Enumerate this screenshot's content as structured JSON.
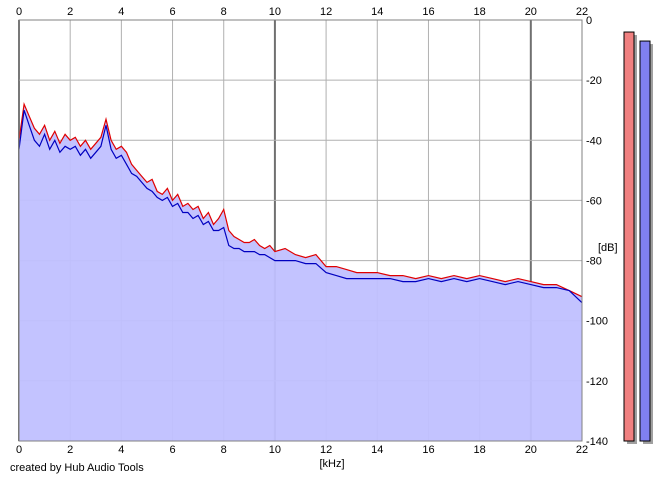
{
  "chart_data": {
    "type": "line",
    "xlabel": "[kHz]",
    "ylabel": "[dB]",
    "xlim": [
      0,
      22
    ],
    "ylim": [
      -140,
      0
    ],
    "x_ticks": [
      0,
      2,
      4,
      6,
      8,
      10,
      12,
      14,
      16,
      18,
      20,
      22
    ],
    "y_ticks": [
      0,
      -20,
      -40,
      -60,
      -80,
      -100,
      -120,
      -140
    ],
    "grid": true,
    "fill_color": "#c0c0ff",
    "series": [
      {
        "color": "#e00000",
        "x": [
          0,
          0.2,
          0.4,
          0.6,
          0.8,
          1.0,
          1.2,
          1.4,
          1.6,
          1.8,
          2.0,
          2.2,
          2.4,
          2.6,
          2.8,
          3.0,
          3.2,
          3.4,
          3.6,
          3.8,
          4.0,
          4.2,
          4.4,
          4.6,
          4.8,
          5.0,
          5.2,
          5.4,
          5.6,
          5.8,
          6.0,
          6.2,
          6.4,
          6.6,
          6.8,
          7.0,
          7.2,
          7.4,
          7.6,
          7.8,
          8.0,
          8.2,
          8.4,
          8.6,
          8.8,
          9.0,
          9.2,
          9.4,
          9.6,
          9.8,
          10.0,
          10.4,
          10.8,
          11.2,
          11.6,
          12.0,
          12.4,
          12.8,
          13.2,
          13.6,
          14.0,
          14.5,
          15.0,
          15.5,
          16.0,
          16.5,
          17.0,
          17.5,
          18.0,
          18.5,
          19.0,
          19.5,
          20.0,
          20.5,
          21.0,
          21.5,
          22.0
        ],
        "values": [
          -40,
          -28,
          -32,
          -36,
          -38,
          -35,
          -40,
          -37,
          -41,
          -38,
          -40,
          -39,
          -42,
          -40,
          -43,
          -41,
          -39,
          -33,
          -40,
          -43,
          -42,
          -44,
          -48,
          -50,
          -52,
          -54,
          -53,
          -57,
          -58,
          -56,
          -60,
          -58,
          -62,
          -61,
          -63,
          -62,
          -66,
          -64,
          -68,
          -66,
          -63,
          -70,
          -72,
          -73,
          -74,
          -74,
          -73,
          -75,
          -76,
          -75,
          -77,
          -76,
          -78,
          -79,
          -78,
          -82,
          -82,
          -83,
          -84,
          -84,
          -84,
          -85,
          -85,
          -86,
          -85,
          -86,
          -85,
          -86,
          -85,
          -86,
          -87,
          -86,
          -87,
          -88,
          -88,
          -90,
          -92
        ]
      },
      {
        "color": "#0000c0",
        "x": [
          0,
          0.2,
          0.4,
          0.6,
          0.8,
          1.0,
          1.2,
          1.4,
          1.6,
          1.8,
          2.0,
          2.2,
          2.4,
          2.6,
          2.8,
          3.0,
          3.2,
          3.4,
          3.6,
          3.8,
          4.0,
          4.2,
          4.4,
          4.6,
          4.8,
          5.0,
          5.2,
          5.4,
          5.6,
          5.8,
          6.0,
          6.2,
          6.4,
          6.6,
          6.8,
          7.0,
          7.2,
          7.4,
          7.6,
          7.8,
          8.0,
          8.2,
          8.4,
          8.6,
          8.8,
          9.0,
          9.2,
          9.4,
          9.6,
          9.8,
          10.0,
          10.4,
          10.8,
          11.2,
          11.6,
          12.0,
          12.4,
          12.8,
          13.2,
          13.6,
          14.0,
          14.5,
          15.0,
          15.5,
          16.0,
          16.5,
          17.0,
          17.5,
          18.0,
          18.5,
          19.0,
          19.5,
          20.0,
          20.5,
          21.0,
          21.5,
          22.0
        ],
        "values": [
          -43,
          -30,
          -35,
          -40,
          -42,
          -38,
          -43,
          -40,
          -44,
          -42,
          -43,
          -42,
          -45,
          -43,
          -46,
          -44,
          -42,
          -35,
          -43,
          -46,
          -45,
          -48,
          -51,
          -52,
          -54,
          -56,
          -57,
          -59,
          -60,
          -59,
          -62,
          -61,
          -64,
          -64,
          -66,
          -65,
          -68,
          -67,
          -70,
          -70,
          -69,
          -75,
          -76,
          -76,
          -77,
          -77,
          -77,
          -78,
          -78,
          -79,
          -80,
          -80,
          -80,
          -81,
          -81,
          -84,
          -85,
          -86,
          -86,
          -86,
          -86,
          -86,
          -87,
          -87,
          -86,
          -87,
          -86,
          -87,
          -86,
          -87,
          -88,
          -87,
          -88,
          -89,
          -89,
          -90,
          -94
        ]
      }
    ],
    "level_meters": [
      {
        "color": "#f08080",
        "level_db": -4
      },
      {
        "color": "#8080f0",
        "level_db": -7
      }
    ]
  },
  "footer": {
    "credit": "created by Hub Audio Tools"
  }
}
